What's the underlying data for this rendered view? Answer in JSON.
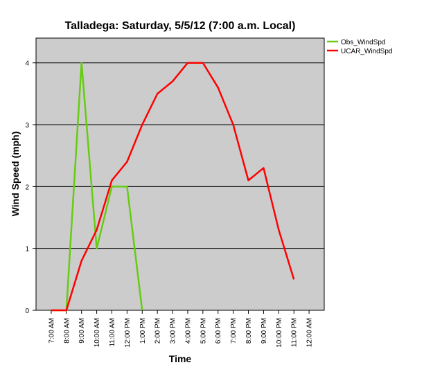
{
  "chart_data": {
    "type": "line",
    "title": "Talladega: Saturday, 5/5/12 (7:00 a.m. Local)",
    "xlabel": "Time",
    "ylabel": "Wind Speed (mph)",
    "ylim": [
      0,
      4.4
    ],
    "yticks": [
      "0",
      "1",
      "2",
      "3",
      "4"
    ],
    "grid": true,
    "legend_position": "top-right",
    "categories": [
      "7:00 AM",
      "8:00 AM",
      "9:00 AM",
      "10:00 AM",
      "11:00 AM",
      "12:00 PM",
      "1:00 PM",
      "2:00 PM",
      "3:00 PM",
      "4:00 PM",
      "5:00 PM",
      "6:00 PM",
      "7:00 PM",
      "8:00 PM",
      "9:00 PM",
      "10:00 PM",
      "11:00 PM",
      "12:00 AM"
    ],
    "series": [
      {
        "name": "Obs_WindSpd",
        "color": "#66cc11",
        "points": [
          [
            0,
            0
          ],
          [
            1,
            0
          ],
          [
            2,
            4
          ],
          [
            3,
            1
          ],
          [
            4,
            2
          ],
          [
            5,
            2
          ],
          [
            6,
            0
          ]
        ]
      },
      {
        "name": "UCAR_WindSpd",
        "color": "#ff0000",
        "points": [
          [
            0,
            0
          ],
          [
            1,
            0
          ],
          [
            2,
            0.8
          ],
          [
            3,
            1.3
          ],
          [
            4,
            2.1
          ],
          [
            5,
            2.4
          ],
          [
            6,
            3.0
          ],
          [
            7,
            3.5
          ],
          [
            8,
            3.7
          ],
          [
            9,
            4.0
          ],
          [
            10,
            4.0
          ],
          [
            11,
            3.6
          ],
          [
            12,
            3.0
          ],
          [
            13,
            2.1
          ],
          [
            14,
            2.3
          ],
          [
            15,
            1.3
          ],
          [
            16,
            0.5
          ]
        ]
      }
    ],
    "plot_background": "#cccccc"
  }
}
